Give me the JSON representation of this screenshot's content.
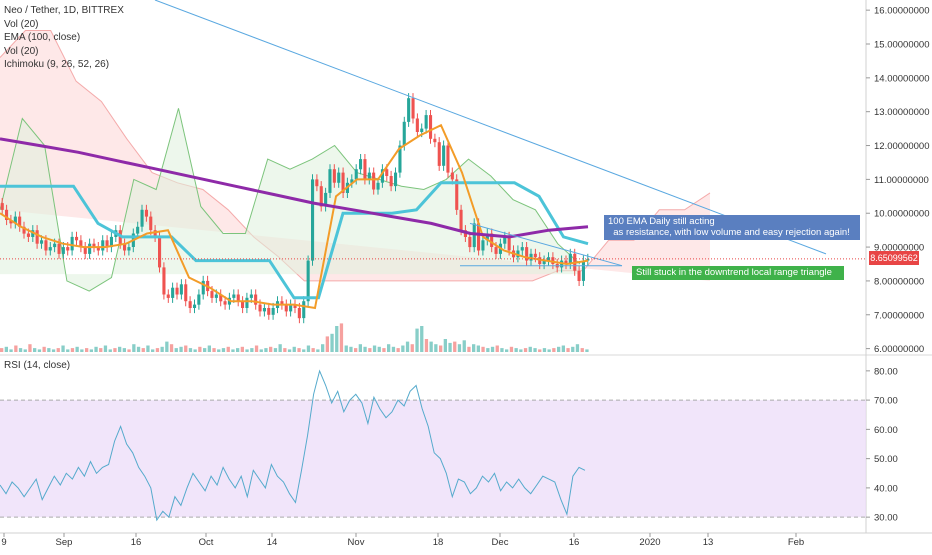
{
  "legend": {
    "symbol": "Neo / Tether, 1D, BITTREX",
    "vol": "Vol (20)",
    "ema": "EMA (100, close)",
    "vol2": "Vol (20)",
    "ichimoku": "Ichimoku (9, 26, 52, 26)"
  },
  "rsi_legend": "RSI (14, close)",
  "last_price_label": "8.65099562",
  "annotations": {
    "ema_note": "100 EMA Daily still acting\n  as resistance, with low volume and easy rejection again!",
    "range_note": "Still stuck in the downtrend local range triangle"
  },
  "colors": {
    "up": "#26a69a",
    "down": "#ef5350",
    "ema": "#8e2aa8",
    "kijun": "#4cc4d8",
    "tenkan": "#f39c28",
    "span_a": "#7cc47c",
    "span_b": "#f08c8c",
    "trendline": "#5aa8e0",
    "rsi": "#55aacc",
    "rsi_band": "#ecdcf8",
    "last_price": "#e84545"
  },
  "chart_data": [
    {
      "type": "candlestick",
      "title": "Neo / Tether, 1D, BITTREX",
      "price_axis_ticks": [
        "16.00000000",
        "15.00000000",
        "14.00000000",
        "13.00000000",
        "12.00000000",
        "11.00000000",
        "10.00000000",
        "9.00000000",
        "8.00000000",
        "7.00000000",
        "6.00000000"
      ],
      "price_ticks": [
        16,
        15,
        14,
        13,
        12,
        11,
        10,
        9,
        8,
        7,
        6
      ],
      "time_axis_labels": [
        "9",
        "Sep",
        "16",
        "Oct",
        "14",
        "Nov",
        "18",
        "Dec",
        "16",
        "2020",
        "13",
        "Feb"
      ],
      "ylim": [
        5.9,
        16.3
      ],
      "last_price": 8.65099562,
      "close_series": [
        10.1,
        9.8,
        9.7,
        9.9,
        9.6,
        9.4,
        9.3,
        9.5,
        9.1,
        9.2,
        8.9,
        9.0,
        9.1,
        8.8,
        9.0,
        8.9,
        9.3,
        9.2,
        9.0,
        8.8,
        9.1,
        9.0,
        8.9,
        9.2,
        9.0,
        9.3,
        9.5,
        9.1,
        8.9,
        9.0,
        9.4,
        9.6,
        10.1,
        9.9,
        9.5,
        9.3,
        8.4,
        7.6,
        7.5,
        7.8,
        7.6,
        7.9,
        7.4,
        7.2,
        7.3,
        7.6,
        8.0,
        7.7,
        7.5,
        7.6,
        7.4,
        7.3,
        7.5,
        7.6,
        7.4,
        7.2,
        7.5,
        7.6,
        7.3,
        7.1,
        7.2,
        7.0,
        7.2,
        7.4,
        7.3,
        7.1,
        7.3,
        7.2,
        6.9,
        7.4,
        8.6,
        11.0,
        10.8,
        10.2,
        10.6,
        11.3,
        10.9,
        11.2,
        10.6,
        10.9,
        11.0,
        11.3,
        11.6,
        11.0,
        11.2,
        10.7,
        10.9,
        11.3,
        11.1,
        10.8,
        11.2,
        12.0,
        12.7,
        13.4,
        12.8,
        12.4,
        12.5,
        12.9,
        12.2,
        12.1,
        11.4,
        12.0,
        11.2,
        11.0,
        10.1,
        9.5,
        9.3,
        9.0,
        9.7,
        8.9,
        9.2,
        9.4,
        9.0,
        8.8,
        9.1,
        9.3,
        8.9,
        8.7,
        8.9,
        9.0,
        8.6,
        8.8,
        8.7,
        8.5,
        8.6,
        8.7,
        8.5,
        8.4,
        8.6,
        8.5,
        8.8,
        8.3,
        8.0,
        8.6,
        8.65
      ],
      "ema_100": [
        12.2,
        12.0,
        11.8,
        11.55,
        11.3,
        11.05,
        10.8,
        10.55,
        10.3,
        10.1,
        9.9,
        9.7,
        9.4,
        9.3,
        9.5,
        9.6
      ],
      "tenkan_sen": [
        10.0,
        9.6,
        9.3,
        9.1,
        9.0,
        9.0,
        9.1,
        9.4,
        9.5,
        8.1,
        7.8,
        7.4,
        7.4,
        7.3,
        7.3,
        7.2,
        10.5,
        11.0,
        11.0,
        11.9,
        12.3,
        12.6,
        11.2,
        9.3,
        8.9,
        8.7,
        8.6,
        8.5,
        8.6
      ],
      "kijun_sen": [
        10.8,
        10.8,
        10.8,
        10.8,
        9.7,
        9.3,
        9.3,
        9.3,
        8.6,
        8.6,
        8.6,
        8.6,
        7.5,
        7.5,
        10.0,
        10.0,
        10.0,
        10.1,
        10.9,
        10.9,
        10.9,
        10.9,
        10.5,
        9.3,
        9.1
      ],
      "span_a": [
        10.1,
        12.8,
        12.0,
        8.0,
        7.7,
        8.1,
        11.0,
        10.7,
        13.1,
        10.2,
        9.4,
        9.4,
        11.6,
        11.3,
        11.6,
        12.0,
        11.2,
        11.0,
        10.8,
        10.7,
        11.0,
        11.6,
        11.1,
        10.4,
        10.1,
        9.1,
        8.5
      ],
      "span_b": [
        14.6,
        15.4,
        15.4,
        13.9,
        13.3,
        12.2,
        11.2,
        10.9,
        10.7,
        10.1,
        9.3,
        8.7,
        8.0,
        8.0,
        8.0,
        8.0,
        8.0,
        8.0,
        8.0,
        8.0,
        8.0,
        8.0,
        8.3,
        8.3,
        9.2,
        9.2,
        10.1,
        10.1,
        10.6
      ],
      "trendline": {
        "from": [
          13.4,
          "Nov 20"
        ],
        "to": [
          8.8,
          "Jan 30"
        ]
      },
      "triangle_lower": 8.45,
      "volume_relative": [
        3,
        4,
        2,
        5,
        3,
        2,
        6,
        3,
        2,
        4,
        3,
        2,
        3,
        5,
        2,
        3,
        4,
        2,
        3,
        2,
        4,
        3,
        5,
        2,
        3,
        4,
        3,
        2,
        6,
        4,
        3,
        5,
        2,
        3,
        4,
        8,
        6,
        3,
        4,
        5,
        3,
        2,
        4,
        3,
        5,
        3,
        2,
        3,
        4,
        2,
        3,
        4,
        2,
        3,
        5,
        2,
        3,
        4,
        3,
        6,
        3,
        2,
        4,
        3,
        2,
        5,
        3,
        2,
        6,
        12,
        14,
        20,
        22,
        5,
        4,
        3,
        6,
        4,
        3,
        5,
        4,
        3,
        6,
        4,
        3,
        5,
        8,
        6,
        18,
        20,
        10,
        8,
        6,
        5,
        10,
        7,
        8,
        6,
        9,
        4,
        6,
        5,
        4,
        3,
        4,
        5,
        3,
        2,
        4,
        3,
        2,
        3,
        4,
        3,
        2,
        3,
        2,
        3,
        4,
        5,
        3,
        4,
        6,
        3,
        2
      ]
    },
    {
      "type": "line",
      "title": "RSI (14, close)",
      "y_ticks": [
        "80.00",
        "70.00",
        "60.00",
        "50.00",
        "40.00",
        "30.00"
      ],
      "y_tick_values": [
        80,
        70,
        60,
        50,
        40,
        30
      ],
      "ylim": [
        28,
        82
      ],
      "band": [
        30,
        70
      ],
      "values": [
        41,
        38,
        42,
        40,
        37,
        40,
        43,
        36,
        40,
        44,
        41,
        45,
        43,
        47,
        44,
        49,
        45,
        47,
        48,
        56,
        61,
        55,
        52,
        47,
        44,
        40,
        29,
        32,
        30,
        37,
        34,
        40,
        45,
        42,
        39,
        44,
        41,
        47,
        43,
        40,
        44,
        37,
        46,
        43,
        40,
        48,
        44,
        42,
        38,
        35,
        46,
        58,
        72,
        80,
        75,
        69,
        73,
        66,
        70,
        72,
        69,
        62,
        71,
        67,
        64,
        66,
        70,
        68,
        73,
        75,
        67,
        61,
        52,
        50,
        45,
        37,
        43,
        42,
        38,
        40,
        44,
        42,
        45,
        39,
        42,
        40,
        43,
        40,
        38,
        41,
        44,
        43,
        42,
        36,
        31,
        44,
        47,
        46
      ],
      "values_tail_note": ""
    }
  ]
}
